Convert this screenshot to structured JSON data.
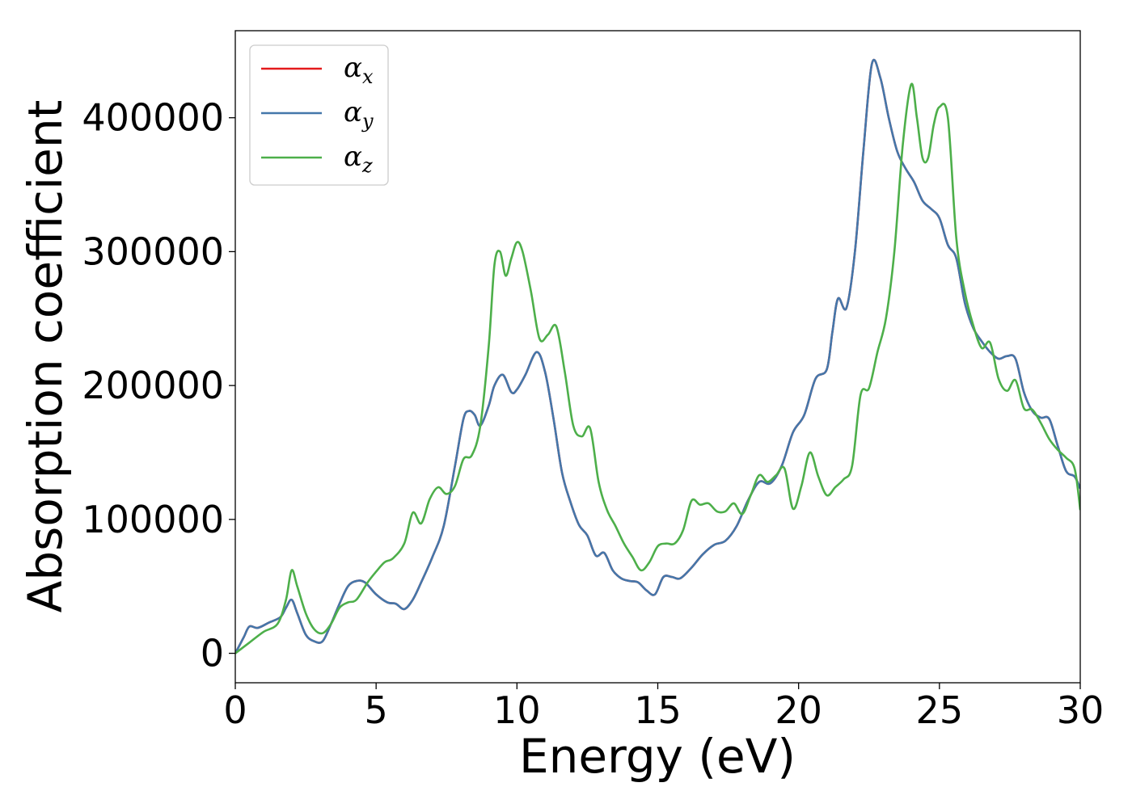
{
  "chart_data": {
    "type": "line",
    "xlabel": "Energy (eV)",
    "ylabel": "Absorption coefficient",
    "xlim": [
      0,
      30
    ],
    "ylim": [
      -22000,
      465000
    ],
    "xticks": [
      0,
      5,
      10,
      15,
      20,
      25,
      30
    ],
    "yticks": [
      0,
      100000,
      200000,
      300000,
      400000
    ],
    "grid": false,
    "legend_position": "top-left",
    "series": [
      {
        "name": "α",
        "subscript": "x",
        "color": "#e41a1c",
        "x": [
          0,
          0.3,
          0.5,
          0.8,
          1.2,
          1.6,
          1.8,
          2.0,
          2.2,
          2.5,
          2.8,
          3.1,
          3.4,
          3.7,
          4.0,
          4.3,
          4.6,
          5.0,
          5.4,
          5.7,
          6.0,
          6.3,
          6.6,
          7.0,
          7.4,
          7.8,
          8.1,
          8.3,
          8.5,
          8.7,
          9.0,
          9.2,
          9.5,
          9.8,
          10.0,
          10.3,
          10.7,
          11.0,
          11.3,
          11.6,
          11.9,
          12.2,
          12.5,
          12.8,
          13.1,
          13.4,
          13.7,
          14.0,
          14.3,
          14.6,
          14.9,
          15.2,
          15.5,
          15.8,
          16.2,
          16.6,
          17.0,
          17.4,
          17.8,
          18.2,
          18.6,
          19.0,
          19.4,
          19.8,
          20.2,
          20.6,
          21.0,
          21.2,
          21.4,
          21.7,
          22.0,
          22.3,
          22.6,
          22.9,
          23.2,
          23.5,
          23.8,
          24.1,
          24.4,
          24.7,
          25.0,
          25.3,
          25.6,
          25.9,
          26.2,
          26.5,
          26.8,
          27.1,
          27.4,
          27.7,
          28.0,
          28.3,
          28.6,
          28.9,
          29.2,
          29.5,
          29.8,
          30.0
        ],
        "y": [
          0,
          12000,
          20000,
          19000,
          23000,
          27000,
          34000,
          40000,
          30000,
          14000,
          9000,
          9000,
          22000,
          37000,
          50000,
          54000,
          53000,
          44000,
          38000,
          37000,
          33000,
          40000,
          53000,
          72000,
          95000,
          140000,
          175000,
          181000,
          178000,
          170000,
          185000,
          200000,
          208000,
          195000,
          197000,
          208000,
          225000,
          210000,
          175000,
          135000,
          113000,
          96000,
          88000,
          73000,
          75000,
          62000,
          56000,
          54000,
          53000,
          47000,
          44000,
          57000,
          57000,
          56000,
          64000,
          74000,
          81000,
          84000,
          95000,
          114000,
          128000,
          127000,
          140000,
          165000,
          178000,
          205000,
          212000,
          240000,
          265000,
          258000,
          300000,
          375000,
          440000,
          430000,
          400000,
          375000,
          362000,
          352000,
          338000,
          332000,
          325000,
          305000,
          295000,
          262000,
          243000,
          233000,
          225000,
          220000,
          222000,
          220000,
          195000,
          181000,
          176000,
          175000,
          155000,
          136000,
          132000,
          123000
        ]
      },
      {
        "name": "α",
        "subscript": "y",
        "color": "#4477aa",
        "x": [
          0,
          0.3,
          0.5,
          0.8,
          1.2,
          1.6,
          1.8,
          2.0,
          2.2,
          2.5,
          2.8,
          3.1,
          3.4,
          3.7,
          4.0,
          4.3,
          4.6,
          5.0,
          5.4,
          5.7,
          6.0,
          6.3,
          6.6,
          7.0,
          7.4,
          7.8,
          8.1,
          8.3,
          8.5,
          8.7,
          9.0,
          9.2,
          9.5,
          9.8,
          10.0,
          10.3,
          10.7,
          11.0,
          11.3,
          11.6,
          11.9,
          12.2,
          12.5,
          12.8,
          13.1,
          13.4,
          13.7,
          14.0,
          14.3,
          14.6,
          14.9,
          15.2,
          15.5,
          15.8,
          16.2,
          16.6,
          17.0,
          17.4,
          17.8,
          18.2,
          18.6,
          19.0,
          19.4,
          19.8,
          20.2,
          20.6,
          21.0,
          21.2,
          21.4,
          21.7,
          22.0,
          22.3,
          22.6,
          22.9,
          23.2,
          23.5,
          23.8,
          24.1,
          24.4,
          24.7,
          25.0,
          25.3,
          25.6,
          25.9,
          26.2,
          26.5,
          26.8,
          27.1,
          27.4,
          27.7,
          28.0,
          28.3,
          28.6,
          28.9,
          29.2,
          29.5,
          29.8,
          30.0
        ],
        "y": [
          0,
          12000,
          20000,
          19000,
          23000,
          27000,
          34000,
          40000,
          30000,
          14000,
          9000,
          9000,
          22000,
          37000,
          50000,
          54000,
          53000,
          44000,
          38000,
          37000,
          33000,
          40000,
          53000,
          72000,
          95000,
          140000,
          175000,
          181000,
          178000,
          170000,
          185000,
          200000,
          208000,
          195000,
          197000,
          208000,
          225000,
          210000,
          175000,
          135000,
          113000,
          96000,
          88000,
          73000,
          75000,
          62000,
          56000,
          54000,
          53000,
          47000,
          44000,
          57000,
          57000,
          56000,
          64000,
          74000,
          81000,
          84000,
          95000,
          114000,
          128000,
          127000,
          140000,
          165000,
          178000,
          205000,
          212000,
          240000,
          265000,
          258000,
          300000,
          375000,
          440000,
          430000,
          400000,
          375000,
          362000,
          352000,
          338000,
          332000,
          325000,
          305000,
          295000,
          262000,
          243000,
          233000,
          225000,
          220000,
          222000,
          220000,
          195000,
          181000,
          176000,
          175000,
          155000,
          136000,
          132000,
          123000
        ]
      },
      {
        "name": "α",
        "subscript": "z",
        "color": "#4daf4a",
        "x": [
          0,
          0.5,
          1.0,
          1.5,
          1.8,
          2.0,
          2.2,
          2.5,
          2.8,
          3.1,
          3.4,
          3.7,
          4.0,
          4.3,
          4.7,
          5.0,
          5.3,
          5.6,
          6.0,
          6.3,
          6.6,
          6.9,
          7.2,
          7.5,
          7.8,
          8.1,
          8.4,
          8.7,
          9.0,
          9.2,
          9.4,
          9.6,
          9.8,
          10.0,
          10.2,
          10.5,
          10.8,
          11.1,
          11.4,
          11.7,
          12.0,
          12.3,
          12.6,
          12.9,
          13.2,
          13.5,
          13.8,
          14.1,
          14.4,
          14.7,
          15.0,
          15.3,
          15.6,
          15.9,
          16.2,
          16.5,
          16.8,
          17.1,
          17.4,
          17.7,
          18.0,
          18.3,
          18.6,
          18.9,
          19.2,
          19.5,
          19.8,
          20.1,
          20.4,
          20.7,
          21.0,
          21.3,
          21.6,
          21.9,
          22.2,
          22.5,
          22.8,
          23.1,
          23.4,
          23.7,
          24.0,
          24.2,
          24.4,
          24.6,
          24.8,
          25.0,
          25.3,
          25.6,
          25.9,
          26.2,
          26.5,
          26.8,
          27.1,
          27.4,
          27.7,
          28.0,
          28.3,
          28.6,
          28.9,
          29.2,
          29.5,
          29.8,
          30.0
        ],
        "y": [
          0,
          8000,
          16000,
          22000,
          40000,
          62000,
          50000,
          30000,
          18000,
          15000,
          22000,
          34000,
          38000,
          40000,
          53000,
          61000,
          68000,
          71000,
          82000,
          105000,
          97000,
          115000,
          124000,
          119000,
          125000,
          145000,
          148000,
          170000,
          230000,
          290000,
          300000,
          282000,
          295000,
          307000,
          300000,
          270000,
          235000,
          238000,
          244000,
          210000,
          170000,
          162000,
          168000,
          128000,
          107000,
          95000,
          82000,
          72000,
          62000,
          68000,
          80000,
          82000,
          82000,
          92000,
          114000,
          111000,
          112000,
          106000,
          106000,
          112000,
          104000,
          118000,
          133000,
          128000,
          133000,
          138000,
          108000,
          125000,
          150000,
          132000,
          118000,
          124000,
          130000,
          140000,
          193000,
          198000,
          225000,
          250000,
          300000,
          380000,
          425000,
          400000,
          370000,
          370000,
          395000,
          408000,
          400000,
          310000,
          270000,
          245000,
          228000,
          232000,
          205000,
          196000,
          204000,
          183000,
          182000,
          172000,
          160000,
          152000,
          146000,
          138000,
          107000
        ]
      }
    ]
  }
}
